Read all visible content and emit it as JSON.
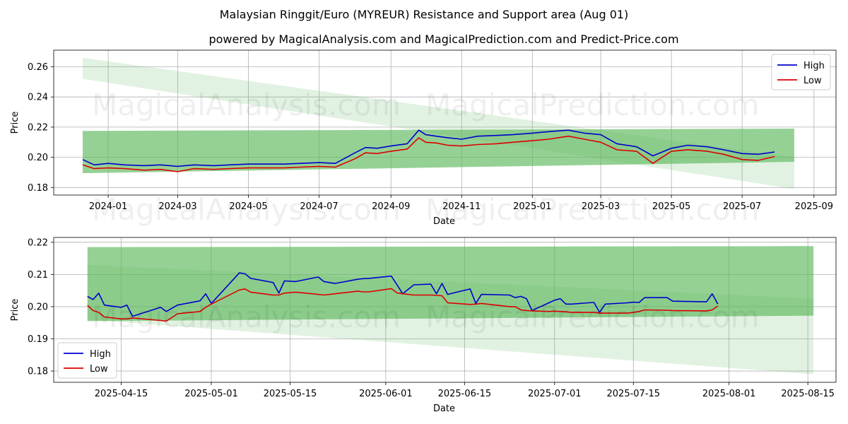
{
  "title": "Malaysian Ringgit/Euro (MYREUR) Resistance and Support area (Aug 01)",
  "subtitle": "powered by MagicalAnalysis.com and MagicalPrediction.com and Predict-Price.com",
  "watermarks": [
    "MagicalAnalysis.com",
    "MagicalPrediction.com"
  ],
  "colors": {
    "high": "#0000cc",
    "low": "#dd0000",
    "band": "#5cb85c",
    "band_light": "#c8e6c9"
  },
  "chart_data": [
    {
      "type": "line",
      "name": "full-range",
      "xlabel": "Date",
      "ylabel": "Price",
      "xlim": [
        "2023-11-15",
        "2025-09-20"
      ],
      "ylim": [
        0.175,
        0.271
      ],
      "x_ticks": [
        "2024-01",
        "2024-03",
        "2024-05",
        "2024-07",
        "2024-09",
        "2024-11",
        "2025-01",
        "2025-03",
        "2025-05",
        "2025-07",
        "2025-09"
      ],
      "x_tick_dates": [
        "2024-01-01",
        "2024-03-01",
        "2024-05-01",
        "2024-07-01",
        "2024-09-01",
        "2024-11-01",
        "2025-01-01",
        "2025-03-01",
        "2025-05-01",
        "2025-07-01",
        "2025-09-01"
      ],
      "y_ticks": [
        "0.18",
        "0.20",
        "0.22",
        "0.24",
        "0.26"
      ],
      "y_tick_values": [
        0.18,
        0.2,
        0.22,
        0.24,
        0.26
      ],
      "legend": {
        "position": "top-right",
        "entries": [
          "High",
          "Low"
        ]
      },
      "bands": [
        {
          "name": "support-resistance-band",
          "x": [
            "2023-12-10",
            "2025-08-15"
          ],
          "top": [
            0.2175,
            0.219
          ],
          "bottom": [
            0.1895,
            0.197
          ],
          "opacity": 0.65
        },
        {
          "name": "trend-band",
          "x": [
            "2023-12-10",
            "2025-08-15"
          ],
          "top": [
            0.266,
            0.2
          ],
          "bottom": [
            0.252,
            0.179
          ],
          "opacity": 0.18
        }
      ],
      "series": [
        {
          "name": "High",
          "x": [
            "2023-12-10",
            "2023-12-20",
            "2024-01-01",
            "2024-01-15",
            "2024-02-01",
            "2024-02-15",
            "2024-03-01",
            "2024-03-15",
            "2024-04-01",
            "2024-04-15",
            "2024-05-01",
            "2024-05-15",
            "2024-06-01",
            "2024-06-15",
            "2024-07-01",
            "2024-07-15",
            "2024-08-01",
            "2024-08-10",
            "2024-08-20",
            "2024-09-01",
            "2024-09-15",
            "2024-09-25",
            "2024-10-01",
            "2024-10-10",
            "2024-10-20",
            "2024-11-01",
            "2024-11-15",
            "2024-12-01",
            "2024-12-15",
            "2025-01-01",
            "2025-01-15",
            "2025-02-01",
            "2025-02-15",
            "2025-03-01",
            "2025-03-15",
            "2025-04-01",
            "2025-04-15",
            "2025-05-01",
            "2025-05-15",
            "2025-06-01",
            "2025-06-15",
            "2025-07-01",
            "2025-07-15",
            "2025-07-29"
          ],
          "values": [
            0.1985,
            0.195,
            0.196,
            0.195,
            0.1945,
            0.195,
            0.194,
            0.195,
            0.1945,
            0.195,
            0.1955,
            0.1955,
            0.1955,
            0.196,
            0.1965,
            0.196,
            0.203,
            0.2065,
            0.206,
            0.2075,
            0.209,
            0.218,
            0.215,
            0.214,
            0.213,
            0.212,
            0.214,
            0.2145,
            0.215,
            0.216,
            0.217,
            0.218,
            0.216,
            0.215,
            0.209,
            0.207,
            0.201,
            0.206,
            0.208,
            0.207,
            0.205,
            0.2025,
            0.202,
            0.2035
          ]
        },
        {
          "name": "Low",
          "x": [
            "2023-12-10",
            "2023-12-20",
            "2024-01-01",
            "2024-01-15",
            "2024-02-01",
            "2024-02-15",
            "2024-03-01",
            "2024-03-15",
            "2024-04-01",
            "2024-04-15",
            "2024-05-01",
            "2024-05-15",
            "2024-06-01",
            "2024-06-15",
            "2024-07-01",
            "2024-07-15",
            "2024-08-01",
            "2024-08-10",
            "2024-08-20",
            "2024-09-01",
            "2024-09-15",
            "2024-09-25",
            "2024-10-01",
            "2024-10-10",
            "2024-10-20",
            "2024-11-01",
            "2024-11-15",
            "2024-12-01",
            "2024-12-15",
            "2025-01-01",
            "2025-01-15",
            "2025-02-01",
            "2025-02-15",
            "2025-03-01",
            "2025-03-15",
            "2025-04-01",
            "2025-04-15",
            "2025-05-01",
            "2025-05-15",
            "2025-06-01",
            "2025-06-15",
            "2025-07-01",
            "2025-07-15",
            "2025-07-29"
          ],
          "values": [
            0.195,
            0.1925,
            0.193,
            0.1925,
            0.1915,
            0.192,
            0.1905,
            0.1925,
            0.192,
            0.1925,
            0.193,
            0.193,
            0.193,
            0.1935,
            0.194,
            0.1935,
            0.199,
            0.203,
            0.2025,
            0.204,
            0.2055,
            0.213,
            0.21,
            0.2095,
            0.208,
            0.2075,
            0.2085,
            0.209,
            0.21,
            0.211,
            0.212,
            0.214,
            0.212,
            0.21,
            0.205,
            0.204,
            0.196,
            0.204,
            0.205,
            0.204,
            0.202,
            0.1985,
            0.198,
            0.2005
          ]
        }
      ]
    },
    {
      "type": "line",
      "name": "zoomed-recent",
      "xlabel": "Date",
      "ylabel": "Price",
      "xlim": [
        "2025-04-03",
        "2025-08-20"
      ],
      "ylim": [
        0.1765,
        0.2215
      ],
      "x_ticks": [
        "2025-04-15",
        "2025-05-01",
        "2025-05-15",
        "2025-06-01",
        "2025-06-15",
        "2025-07-01",
        "2025-07-15",
        "2025-08-01",
        "2025-08-15"
      ],
      "x_tick_dates": [
        "2025-04-15",
        "2025-05-01",
        "2025-05-15",
        "2025-06-01",
        "2025-06-15",
        "2025-07-01",
        "2025-07-15",
        "2025-08-01",
        "2025-08-15"
      ],
      "y_ticks": [
        "0.18",
        "0.19",
        "0.20",
        "0.21",
        "0.22"
      ],
      "y_tick_values": [
        0.18,
        0.19,
        0.2,
        0.21,
        0.22
      ],
      "legend": {
        "position": "bottom-left",
        "entries": [
          "High",
          "Low"
        ]
      },
      "bands": [
        {
          "name": "support-resistance-band",
          "x": [
            "2025-04-09",
            "2025-08-16"
          ],
          "top": [
            0.2185,
            0.2188
          ],
          "bottom": [
            0.1955,
            0.1972
          ],
          "opacity": 0.65
        },
        {
          "name": "trend-band",
          "x": [
            "2025-04-09",
            "2025-08-16"
          ],
          "top": [
            0.213,
            0.2025
          ],
          "bottom": [
            0.196,
            0.179
          ],
          "opacity": 0.18
        }
      ],
      "series": [
        {
          "name": "High",
          "x": [
            "2025-04-09",
            "2025-04-10",
            "2025-04-11",
            "2025-04-12",
            "2025-04-15",
            "2025-04-16",
            "2025-04-17",
            "2025-04-22",
            "2025-04-23",
            "2025-04-25",
            "2025-04-29",
            "2025-04-30",
            "2025-05-01",
            "2025-05-06",
            "2025-05-07",
            "2025-05-08",
            "2025-05-12",
            "2025-05-13",
            "2025-05-14",
            "2025-05-16",
            "2025-05-20",
            "2025-05-21",
            "2025-05-23",
            "2025-05-27",
            "2025-05-28",
            "2025-05-29",
            "2025-06-02",
            "2025-06-03",
            "2025-06-04",
            "2025-06-06",
            "2025-06-09",
            "2025-06-10",
            "2025-06-11",
            "2025-06-12",
            "2025-06-16",
            "2025-06-17",
            "2025-06-18",
            "2025-06-23",
            "2025-06-24",
            "2025-06-25",
            "2025-06-26",
            "2025-06-27",
            "2025-06-30",
            "2025-07-01",
            "2025-07-02",
            "2025-07-03",
            "2025-07-04",
            "2025-07-07",
            "2025-07-08",
            "2025-07-09",
            "2025-07-10",
            "2025-07-14",
            "2025-07-15",
            "2025-07-16",
            "2025-07-17",
            "2025-07-21",
            "2025-07-22",
            "2025-07-28",
            "2025-07-29",
            "2025-07-30"
          ],
          "values": [
            0.2032,
            0.2022,
            0.2042,
            0.2005,
            0.1998,
            0.2005,
            0.197,
            0.1998,
            0.1985,
            0.2005,
            0.2018,
            0.204,
            0.201,
            0.2105,
            0.2102,
            0.2088,
            0.2075,
            0.2042,
            0.208,
            0.2078,
            0.2092,
            0.2078,
            0.2072,
            0.2085,
            0.2087,
            0.2088,
            0.2095,
            0.2068,
            0.204,
            0.2068,
            0.207,
            0.204,
            0.2072,
            0.2038,
            0.2055,
            0.201,
            0.2038,
            0.2036,
            0.2028,
            0.2032,
            0.2025,
            0.1988,
            0.2012,
            0.202,
            0.2025,
            0.2008,
            0.2008,
            0.2012,
            0.2013,
            0.1982,
            0.2008,
            0.2012,
            0.2014,
            0.2013,
            0.2028,
            0.2028,
            0.2017,
            0.2015,
            0.204,
            0.2008
          ]
        },
        {
          "name": "Low",
          "x": [
            "2025-04-09",
            "2025-04-10",
            "2025-04-11",
            "2025-04-12",
            "2025-04-15",
            "2025-04-16",
            "2025-04-17",
            "2025-04-22",
            "2025-04-23",
            "2025-04-25",
            "2025-04-29",
            "2025-04-30",
            "2025-05-01",
            "2025-05-06",
            "2025-05-07",
            "2025-05-08",
            "2025-05-12",
            "2025-05-13",
            "2025-05-14",
            "2025-05-16",
            "2025-05-20",
            "2025-05-21",
            "2025-05-23",
            "2025-05-27",
            "2025-05-28",
            "2025-05-29",
            "2025-06-02",
            "2025-06-03",
            "2025-06-04",
            "2025-06-06",
            "2025-06-09",
            "2025-06-10",
            "2025-06-11",
            "2025-06-12",
            "2025-06-16",
            "2025-06-17",
            "2025-06-18",
            "2025-06-23",
            "2025-06-24",
            "2025-06-25",
            "2025-06-26",
            "2025-06-27",
            "2025-06-30",
            "2025-07-01",
            "2025-07-02",
            "2025-07-03",
            "2025-07-04",
            "2025-07-07",
            "2025-07-08",
            "2025-07-09",
            "2025-07-10",
            "2025-07-14",
            "2025-07-15",
            "2025-07-16",
            "2025-07-17",
            "2025-07-21",
            "2025-07-22",
            "2025-07-28",
            "2025-07-29",
            "2025-07-30"
          ],
          "values": [
            0.2004,
            0.1988,
            0.1982,
            0.1968,
            0.1962,
            0.1962,
            0.1965,
            0.1957,
            0.1955,
            0.1978,
            0.1985,
            0.1998,
            0.2008,
            0.2052,
            0.2055,
            0.2045,
            0.2036,
            0.2036,
            0.2042,
            0.2045,
            0.2038,
            0.2036,
            0.204,
            0.2048,
            0.2046,
            0.2046,
            0.2056,
            0.2043,
            0.204,
            0.2036,
            0.2036,
            0.2035,
            0.2034,
            0.2012,
            0.2007,
            0.2008,
            0.201,
            0.2,
            0.2,
            0.199,
            0.1988,
            0.1987,
            0.1985,
            0.1986,
            0.1985,
            0.1984,
            0.1982,
            0.1982,
            0.1982,
            0.198,
            0.198,
            0.198,
            0.1982,
            0.1985,
            0.199,
            0.1989,
            0.1988,
            0.1987,
            0.199,
            0.2002
          ]
        }
      ]
    }
  ]
}
